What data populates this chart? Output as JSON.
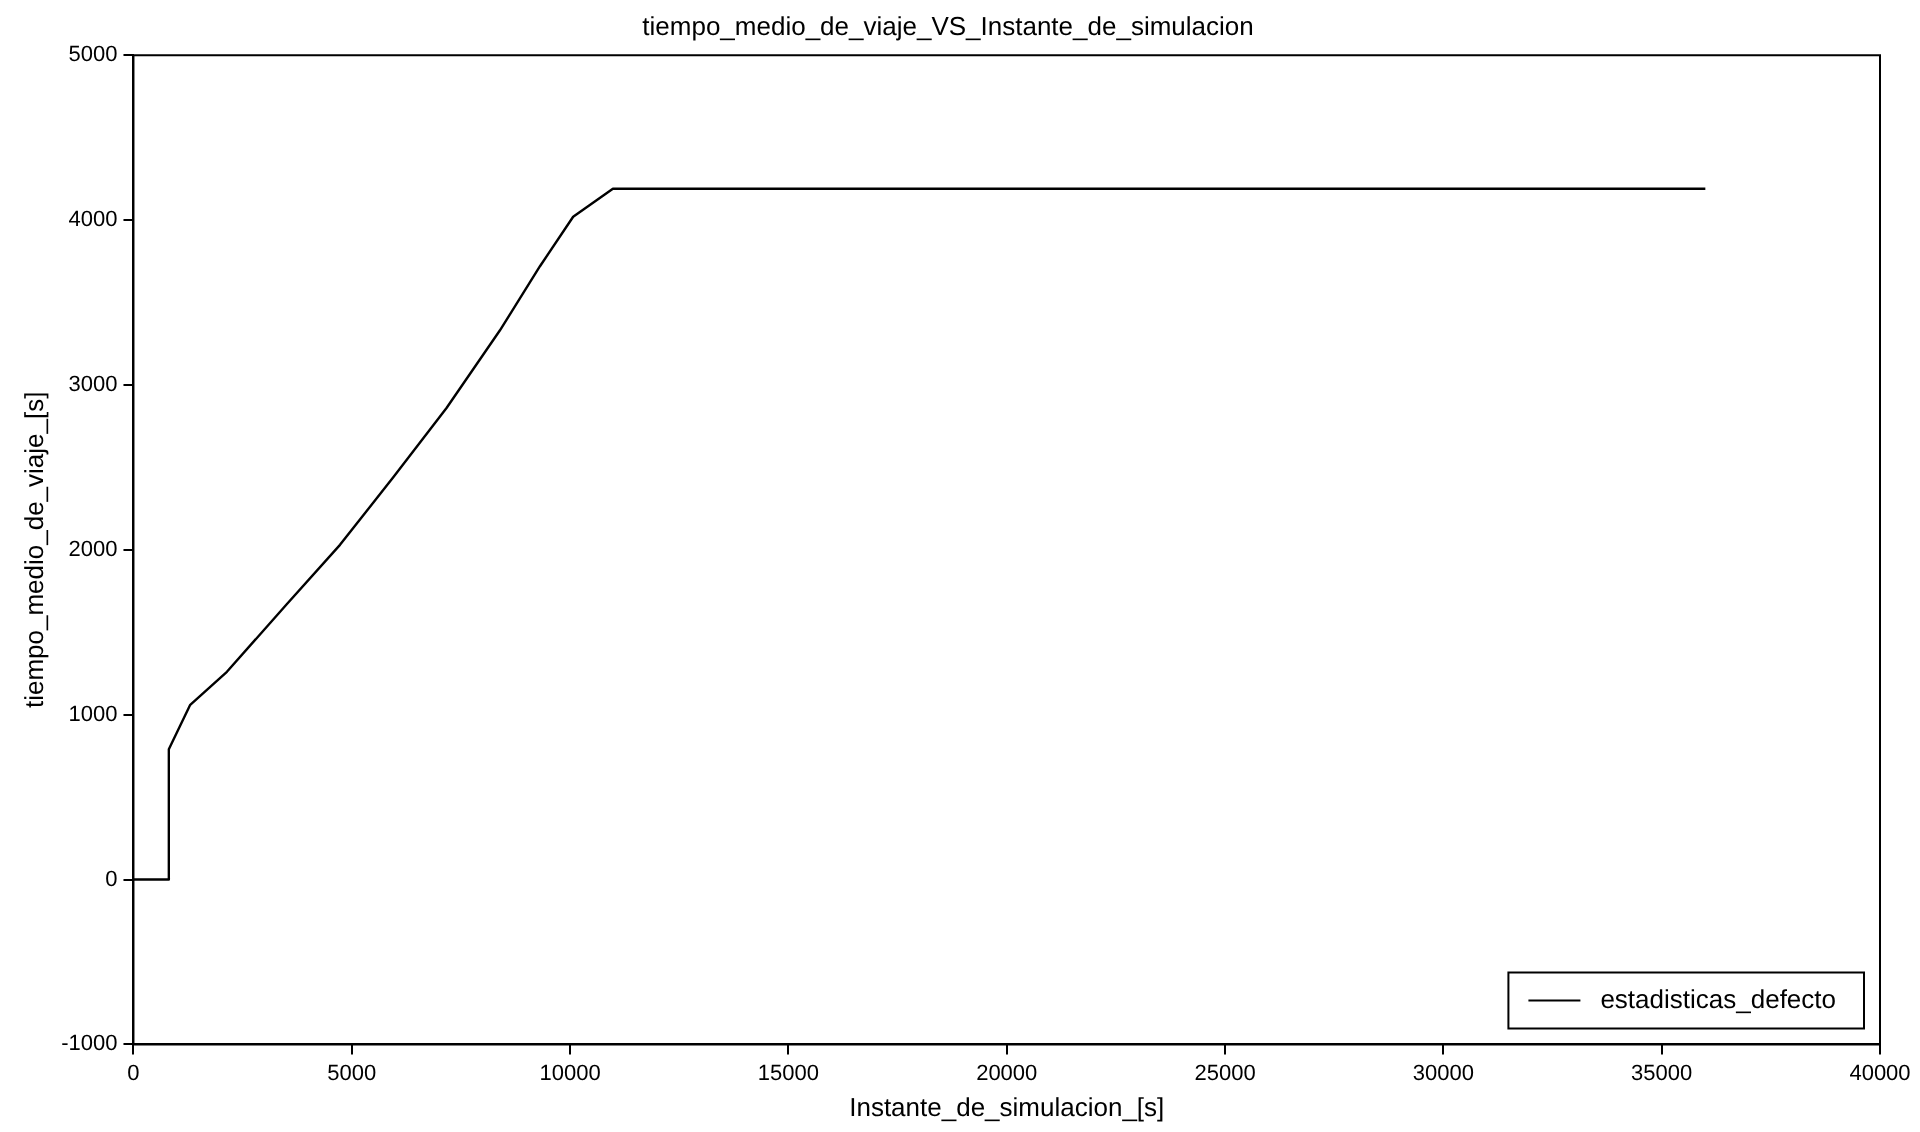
{
  "chart_data": {
    "type": "line",
    "title": "tiempo_medio_de_viaje_VS_Instante_de_simulacion",
    "xlabel": "Instante_de_simulacion_[s]",
    "ylabel": "tiempo_medio_de_viaje_[s]",
    "series": [
      {
        "name": "estadisticas_defecto",
        "color": "#000000",
        "x": [
          0,
          810,
          810,
          1300,
          2140,
          3510,
          4730,
          5950,
          7170,
          8390,
          9310,
          10070,
          10980,
          36000
        ],
        "values": [
          0,
          0,
          790,
          1060,
          1260,
          1670,
          2030,
          2440,
          2860,
          3330,
          3720,
          4020,
          4190,
          4190
        ]
      }
    ],
    "xlim": [
      0,
      40000
    ],
    "xticks": [
      0,
      5000,
      10000,
      15000,
      20000,
      25000,
      30000,
      35000,
      40000
    ],
    "ylim": [
      -1000,
      5000
    ],
    "yticks": [
      -1000,
      0,
      1000,
      2000,
      3000,
      4000,
      5000
    ],
    "grid": false,
    "legend": "bottom right",
    "marker": "none",
    "line_style": "solid"
  }
}
